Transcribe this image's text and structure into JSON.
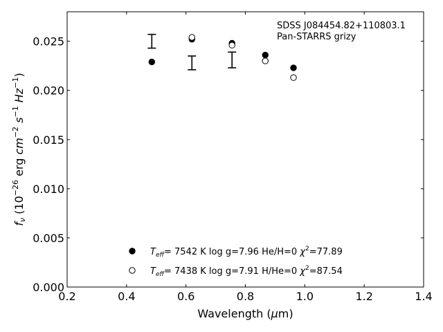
{
  "chart_data": {
    "type": "scatter",
    "xlabel": "Wavelength (μm)",
    "ylabel": "f_ν (10^-26 erg cm^-2 s^-1 Hz^-1)",
    "xlim": [
      0.2,
      1.4
    ],
    "ylim": [
      0.0,
      0.028
    ],
    "x_ticks": [
      "0.2",
      "0.4",
      "0.6",
      "0.8",
      "1.0",
      "1.2",
      "1.4"
    ],
    "y_ticks": [
      "0.000",
      "0.005",
      "0.010",
      "0.015",
      "0.020",
      "0.025"
    ],
    "x_tick_values": [
      0.2,
      0.4,
      0.6,
      0.8,
      1.0,
      1.2,
      1.4
    ],
    "y_tick_values": [
      0.0,
      0.005,
      0.01,
      0.015,
      0.02,
      0.025
    ],
    "grid": false,
    "annotation": [
      "SDSS J084454.82+110803.1",
      "Pan-STARRS grizy"
    ],
    "legend_position": "bottom-center",
    "observed": {
      "x": [
        0.485,
        0.62,
        0.755
      ],
      "y": [
        0.025,
        0.0228,
        0.0231
      ],
      "err": [
        0.0007,
        0.0007,
        0.0008
      ]
    },
    "series": [
      {
        "marker": "filled-circle",
        "legend": {
          "teff": "7542 K",
          "logg": "log g=7.96",
          "comp": "He/H=0",
          "chi2": "=77.89"
        },
        "x": [
          0.485,
          0.62,
          0.755,
          0.867,
          0.962
        ],
        "y": [
          0.0229,
          0.0252,
          0.0248,
          0.0236,
          0.0223
        ]
      },
      {
        "marker": "open-circle",
        "legend": {
          "teff": "7438 K",
          "logg": "log g=7.91",
          "comp": "H/He=0",
          "chi2": "=87.54"
        },
        "x": [
          0.62,
          0.755,
          0.867,
          0.962
        ],
        "y": [
          0.0254,
          0.0246,
          0.023,
          0.0213
        ]
      }
    ]
  }
}
